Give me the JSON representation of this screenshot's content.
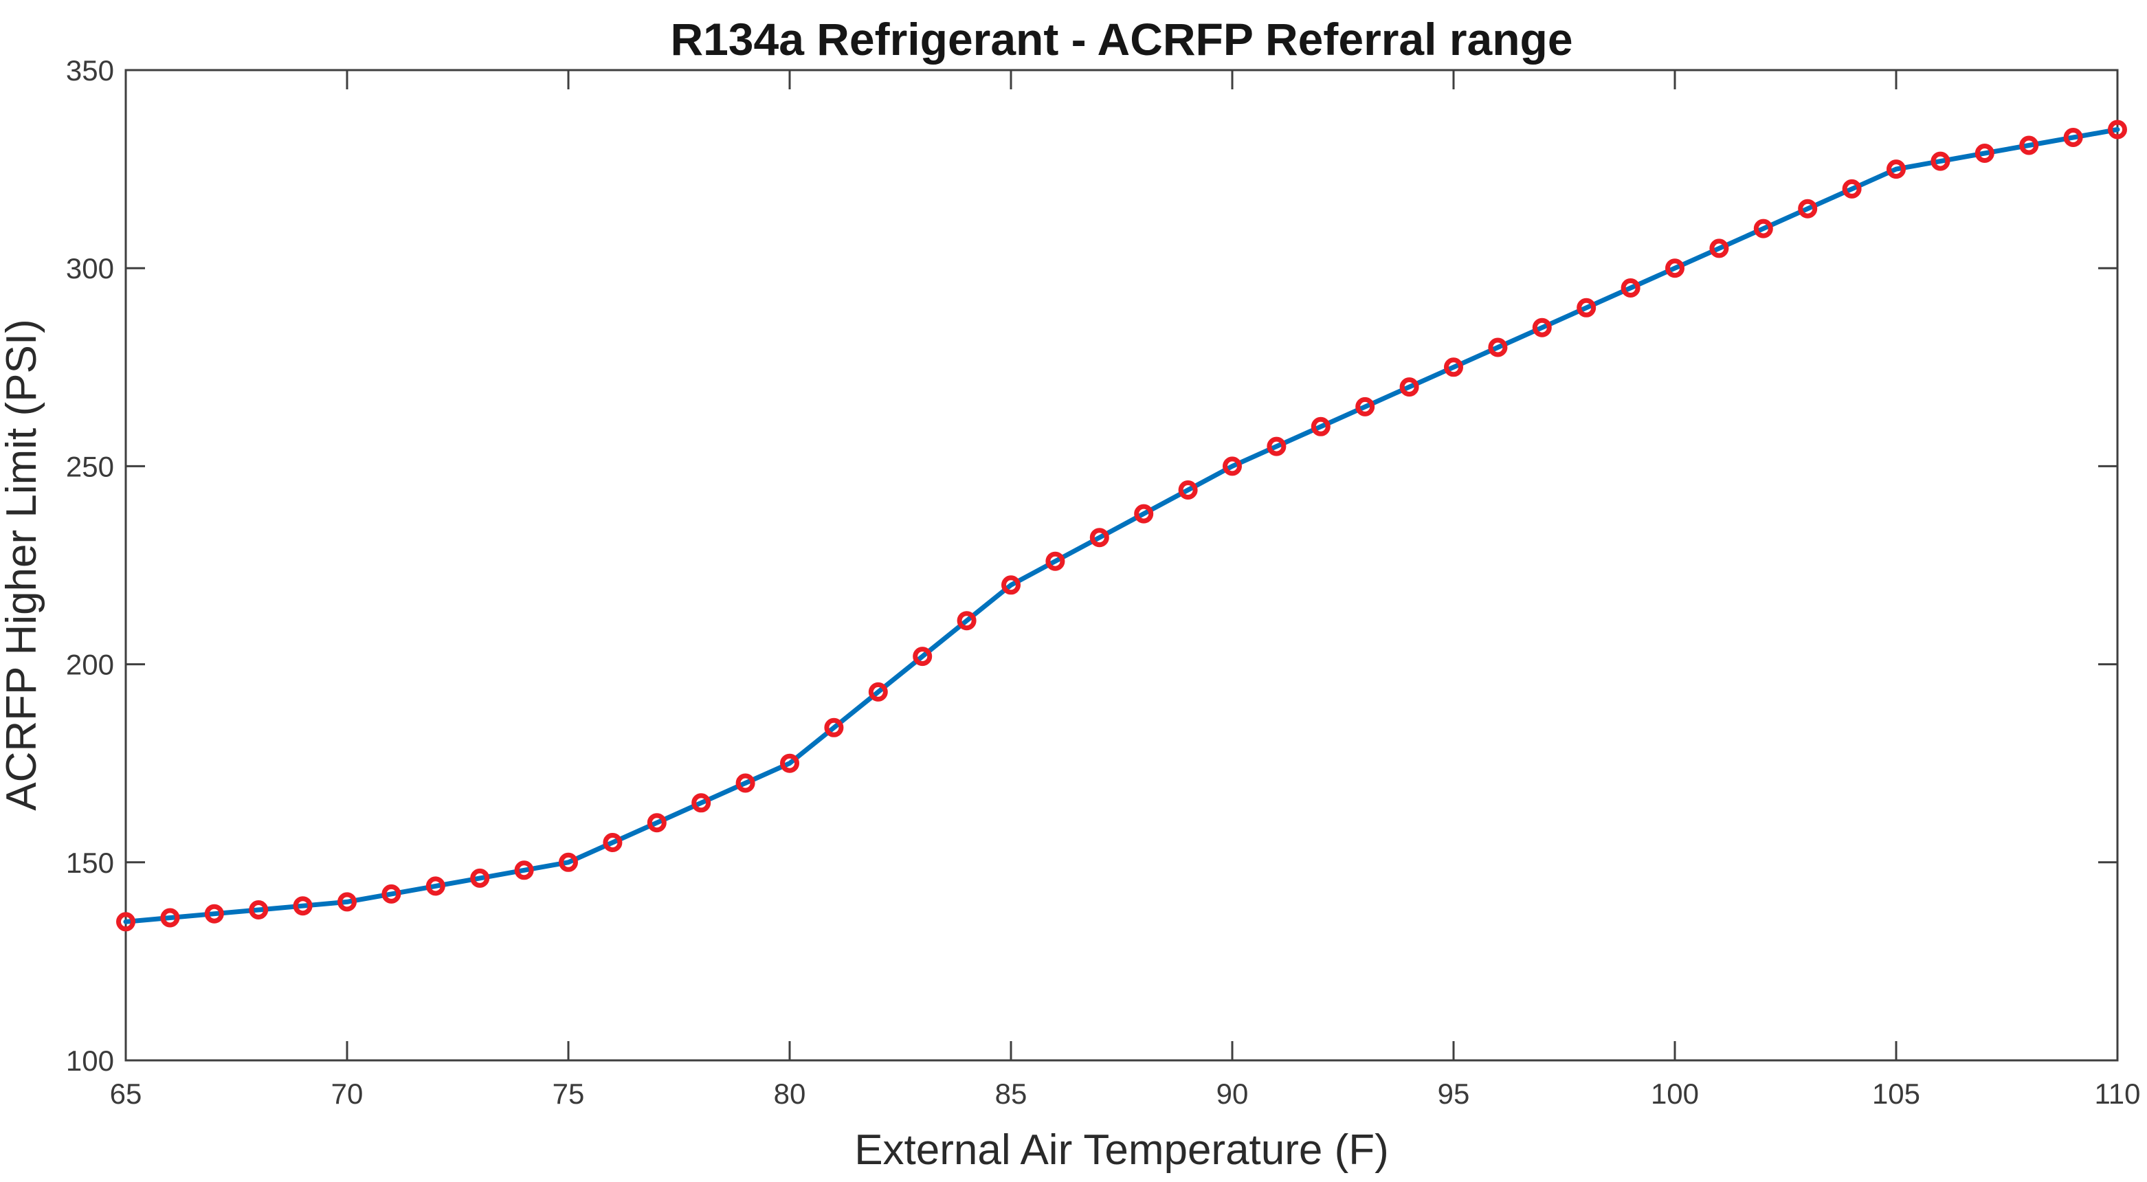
{
  "page": {
    "background_color": "#ffffff",
    "axis_color": "#3f3f3f",
    "text_color": "#161616"
  },
  "chart_data": {
    "type": "line",
    "title": "R134a Refrigerant - ACRFP Referral range",
    "xlabel": "External Air Temperature (F)",
    "ylabel": "ACRFP Higher Limit (PSI)",
    "xlim": [
      65,
      110
    ],
    "ylim": [
      100,
      350
    ],
    "xticks": [
      65,
      70,
      75,
      80,
      85,
      90,
      95,
      100,
      105,
      110
    ],
    "yticks": [
      100,
      150,
      200,
      250,
      300,
      350
    ],
    "grid": false,
    "legend_position": "none",
    "box": true,
    "tick_direction": "in",
    "series": [
      {
        "name": "ACRFP higher limit",
        "marker": "circle",
        "marker_filled": false,
        "line_color": "#0072BD",
        "marker_color": "#EC1C24",
        "x": [
          65,
          66,
          67,
          68,
          69,
          70,
          71,
          72,
          73,
          74,
          75,
          76,
          77,
          78,
          79,
          80,
          81,
          82,
          83,
          84,
          85,
          86,
          87,
          88,
          89,
          90,
          91,
          92,
          93,
          94,
          95,
          96,
          97,
          98,
          99,
          100,
          101,
          102,
          103,
          104,
          105,
          106,
          107,
          108,
          109,
          110
        ],
        "y": [
          135,
          136,
          137,
          138,
          139,
          140,
          142,
          144,
          146,
          148,
          150,
          155,
          160,
          165,
          170,
          175,
          184,
          193,
          202,
          211,
          220,
          226,
          232,
          238,
          244,
          250,
          255,
          260,
          265,
          270,
          275,
          280,
          285,
          290,
          295,
          300,
          305,
          310,
          315,
          320,
          325,
          327,
          329,
          331,
          333,
          335
        ]
      }
    ]
  }
}
